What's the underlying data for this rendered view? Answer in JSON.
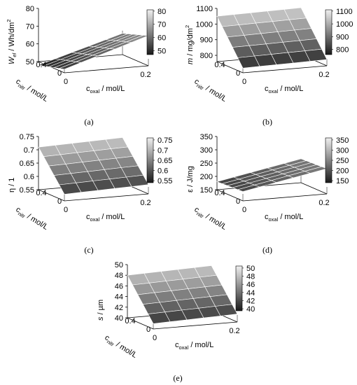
{
  "chart_data": [
    {
      "id": "a",
      "type": "surface3d",
      "panel_label": "(a)",
      "zlabel": {
        "main": "W",
        "sub": "el",
        "rest": " / Wh/dm",
        "sup": "2"
      },
      "xlabel": {
        "main": "c",
        "sub": "oxal",
        "rest": " / mol/L"
      },
      "ylabel": {
        "main": "c",
        "sub": "nitr",
        "rest": " / mol/L"
      },
      "x_ticks": [
        "0",
        "0.2"
      ],
      "y_ticks": [
        "0",
        "0.4"
      ],
      "z_ticks": [
        "50",
        "60",
        "70",
        "80"
      ],
      "zlim": [
        50,
        80
      ],
      "colorbar": {
        "ticks": [
          "80",
          "70",
          "60",
          "50"
        ],
        "range": [
          47,
          81
        ]
      },
      "surface": {
        "front_left": 52,
        "front_right": 67,
        "back_left": 48,
        "back_right": 62
      }
    },
    {
      "id": "b",
      "type": "surface3d",
      "panel_label": "(b)",
      "zlabel": {
        "main": "m",
        "sub": "",
        "rest": " / mg/dm",
        "sup": "2"
      },
      "xlabel": {
        "main": "c",
        "sub": "oxal",
        "rest": " / mol/L"
      },
      "ylabel": {
        "main": "c",
        "sub": "nitr",
        "rest": " / mol/L"
      },
      "x_ticks": [
        "0",
        "0.2"
      ],
      "y_ticks": [
        "0",
        "0.4"
      ],
      "z_ticks": [
        "800",
        "900",
        "1000",
        "1100"
      ],
      "zlim": [
        760,
        1100
      ],
      "colorbar": {
        "ticks": [
          "1100",
          "1000",
          "900",
          "800"
        ],
        "range": [
          760,
          1110
        ]
      },
      "surface": {
        "front_left": 790,
        "front_right": 800,
        "back_left": 1050,
        "back_right": 1060
      }
    },
    {
      "id": "c",
      "type": "surface3d",
      "panel_label": "(c)",
      "zlabel": {
        "main": "η",
        "sub": "",
        "rest": " / 1",
        "sup": ""
      },
      "xlabel": {
        "main": "c",
        "sub": "oxal",
        "rest": " / mol/L"
      },
      "ylabel": {
        "main": "c",
        "sub": "nitr",
        "rest": " / mol/L"
      },
      "x_ticks": [
        "0",
        "0.2"
      ],
      "y_ticks": [
        "0",
        "0.4"
      ],
      "z_ticks": [
        "0.55",
        "0.6",
        "0.65",
        "0.7",
        "0.75"
      ],
      "zlim": [
        0.55,
        0.75
      ],
      "colorbar": {
        "ticks": [
          "0.75",
          "0.7",
          "0.65",
          "0.6",
          "0.55"
        ],
        "range": [
          0.54,
          0.76
        ]
      },
      "surface": {
        "front_left": 0.575,
        "front_right": 0.585,
        "back_left": 0.71,
        "back_right": 0.72
      }
    },
    {
      "id": "d",
      "type": "surface3d",
      "panel_label": "(d)",
      "zlabel": {
        "main": "ε",
        "sub": "",
        "rest": " / J/mg",
        "sup": ""
      },
      "xlabel": {
        "main": "c",
        "sub": "oxal",
        "rest": " / mol/L"
      },
      "ylabel": {
        "main": "c",
        "sub": "nitr",
        "rest": " / mol/L"
      },
      "x_ticks": [
        "0",
        "0.2"
      ],
      "y_ticks": [
        "0",
        "0.4"
      ],
      "z_ticks": [
        "150",
        "200",
        "250",
        "300",
        "350"
      ],
      "zlim": [
        150,
        350
      ],
      "colorbar": {
        "ticks": [
          "350",
          "300",
          "250",
          "200",
          "150"
        ],
        "range": [
          140,
          360
        ]
      },
      "surface": {
        "front_left": 185,
        "front_right": 245,
        "back_left": 180,
        "back_right": 240
      }
    },
    {
      "id": "e",
      "type": "surface3d",
      "panel_label": "(e)",
      "zlabel": {
        "main": "s",
        "sub": "",
        "rest": " / µm",
        "sup": ""
      },
      "xlabel": {
        "main": "c",
        "sub": "oxal",
        "rest": " / mol/L"
      },
      "ylabel": {
        "main": "c",
        "sub": "nitr",
        "rest": " / mol/L"
      },
      "x_ticks": [
        "0",
        "0.2"
      ],
      "y_ticks": [
        "0",
        "0.4"
      ],
      "z_ticks": [
        "40",
        "42",
        "44",
        "46",
        "48",
        "50"
      ],
      "zlim": [
        40,
        50
      ],
      "colorbar": {
        "ticks": [
          "50",
          "48",
          "46",
          "44",
          "42",
          "40"
        ],
        "range": [
          39.5,
          50.5
        ]
      },
      "surface": {
        "front_left": 41,
        "front_right": 41.5,
        "back_left": 48,
        "back_right": 48.5
      }
    }
  ]
}
